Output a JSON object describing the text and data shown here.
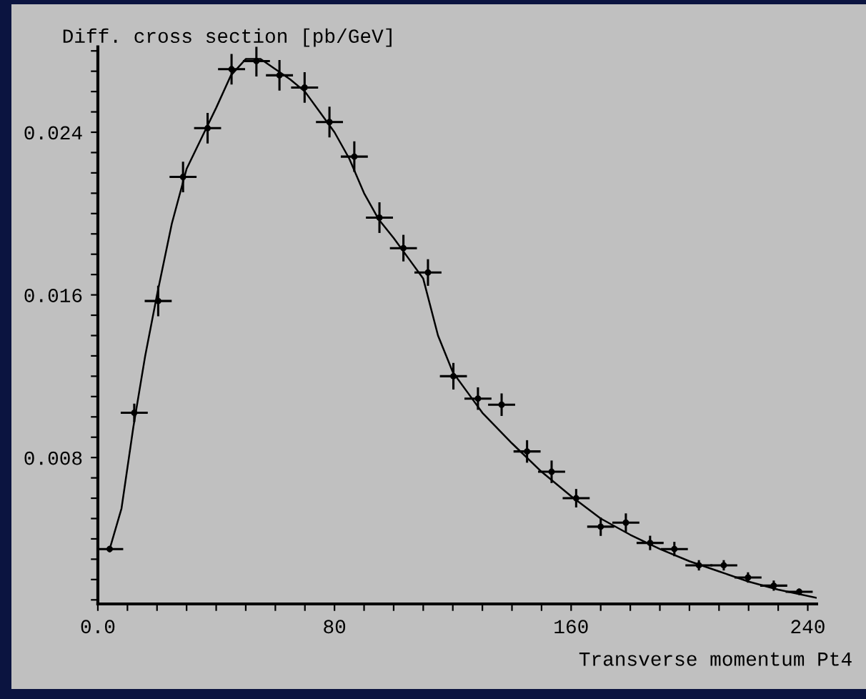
{
  "chart_data": {
    "type": "scatter",
    "ylabel": "Diff. cross section [pb/GeV]",
    "xlabel": "Transverse momentum Pt4",
    "xlim": [
      0,
      243
    ],
    "ylim": [
      0.0008,
      0.0282
    ],
    "xticks": [
      {
        "value": 0,
        "label": "0.0"
      },
      {
        "value": 10,
        "label": null
      },
      {
        "value": 20,
        "label": null
      },
      {
        "value": 30,
        "label": null
      },
      {
        "value": 40,
        "label": null
      },
      {
        "value": 50,
        "label": null
      },
      {
        "value": 60,
        "label": null
      },
      {
        "value": 70,
        "label": null
      },
      80,
      {
        "value": 90,
        "label": null
      },
      {
        "value": 100,
        "label": null
      },
      {
        "value": 110,
        "label": null
      },
      {
        "value": 120,
        "label": null
      },
      {
        "value": 130,
        "label": null
      },
      {
        "value": 140,
        "label": null
      },
      {
        "value": 150,
        "label": null
      },
      160,
      {
        "value": 170,
        "label": null
      },
      {
        "value": 180,
        "label": null
      },
      {
        "value": 190,
        "label": null
      },
      {
        "value": 200,
        "label": null
      },
      {
        "value": 210,
        "label": null
      },
      {
        "value": 220,
        "label": null
      },
      {
        "value": 230,
        "label": null
      },
      240
    ],
    "yticks": [
      {
        "value": 0.001,
        "label": null
      },
      {
        "value": 0.002,
        "label": null
      },
      {
        "value": 0.003,
        "label": null
      },
      {
        "value": 0.004,
        "label": null
      },
      {
        "value": 0.005,
        "label": null
      },
      {
        "value": 0.006,
        "label": null
      },
      {
        "value": 0.007,
        "label": null
      },
      0.008,
      {
        "value": 0.009,
        "label": null
      },
      {
        "value": 0.01,
        "label": null
      },
      {
        "value": 0.011,
        "label": null
      },
      {
        "value": 0.012,
        "label": null
      },
      {
        "value": 0.013,
        "label": null
      },
      {
        "value": 0.014,
        "label": null
      },
      {
        "value": 0.015,
        "label": null
      },
      0.016,
      {
        "value": 0.017,
        "label": null
      },
      {
        "value": 0.018,
        "label": null
      },
      {
        "value": 0.019,
        "label": null
      },
      {
        "value": 0.02,
        "label": null
      },
      {
        "value": 0.021,
        "label": null
      },
      {
        "value": 0.022,
        "label": null
      },
      {
        "value": 0.023,
        "label": null
      },
      0.024,
      {
        "value": 0.025,
        "label": null
      },
      {
        "value": 0.026,
        "label": null
      },
      {
        "value": 0.027,
        "label": null
      },
      {
        "value": 0.028,
        "label": null
      }
    ],
    "grid": false,
    "series": [
      {
        "type": "scatter",
        "marker": "circle",
        "color": "#000000",
        "x": [
          4,
          12.3,
          20.4,
          28.8,
          37.1,
          45.2,
          53.6,
          61.4,
          69.9,
          78.3,
          86.7,
          95.2,
          103.3,
          111.6,
          120.2,
          128.5,
          136.5,
          145.1,
          153.4,
          161.7,
          170,
          178.5,
          186.7,
          194.9,
          203.2,
          211.6,
          219.8,
          228.5,
          237.1
        ],
        "values": [
          0.0035,
          0.0102,
          0.0157,
          0.0218,
          0.0242,
          0.0271,
          0.0275,
          0.0268,
          0.0262,
          0.0245,
          0.0228,
          0.0198,
          0.0183,
          0.0171,
          0.012,
          0.0109,
          0.0106,
          0.0083,
          0.0073,
          0.006,
          0.0046,
          0.0048,
          0.0038,
          0.0035,
          0.0027,
          0.0027,
          0.0021,
          0.0017,
          0.0014
        ],
        "errors": [
          0.0001,
          0.0004,
          0.0007,
          0.0007,
          0.0007,
          0.0007,
          0.0007,
          0.0007,
          0.0007,
          0.0007,
          0.0007,
          0.0007,
          0.0006,
          0.0006,
          0.0006,
          0.0005,
          0.0005,
          0.0005,
          0.0005,
          0.0004,
          0.0004,
          0.0004,
          0.0003,
          0.0003,
          0.0002,
          0.0002,
          0.0002,
          0.0002,
          0.0001
        ],
        "xerrors": [
          4.2,
          4.2,
          4.2,
          4.2,
          4.2,
          4.2,
          4.2,
          4.2,
          4.2,
          4.2,
          4.2,
          4.2,
          4.2,
          4.2,
          4.2,
          4.2,
          4.2,
          4.2,
          4.2,
          4.2,
          4.2,
          4.2,
          4.2,
          4.2,
          4.2,
          4.2,
          4.2,
          4.2,
          4.2
        ]
      },
      {
        "type": "line",
        "marker": "none",
        "line_style": "solid",
        "color": "#000000",
        "x": [
          4,
          8,
          12,
          16,
          20,
          25,
          30,
          35,
          40,
          45,
          50,
          55,
          60,
          65,
          70,
          75,
          80,
          85,
          90,
          95,
          100,
          105,
          110,
          115,
          120,
          125,
          130,
          140,
          150,
          160,
          170,
          180,
          190,
          200,
          210,
          220,
          230,
          243
        ],
        "values": [
          0.0035,
          0.0055,
          0.0095,
          0.013,
          0.016,
          0.0195,
          0.0222,
          0.0237,
          0.0252,
          0.0268,
          0.0276,
          0.0276,
          0.0271,
          0.0266,
          0.026,
          0.025,
          0.024,
          0.0227,
          0.021,
          0.0197,
          0.0188,
          0.0178,
          0.0168,
          0.014,
          0.0122,
          0.0112,
          0.0102,
          0.0087,
          0.0073,
          0.0061,
          0.005,
          0.0042,
          0.0035,
          0.0029,
          0.0024,
          0.0019,
          0.0015,
          0.0011
        ]
      }
    ]
  }
}
